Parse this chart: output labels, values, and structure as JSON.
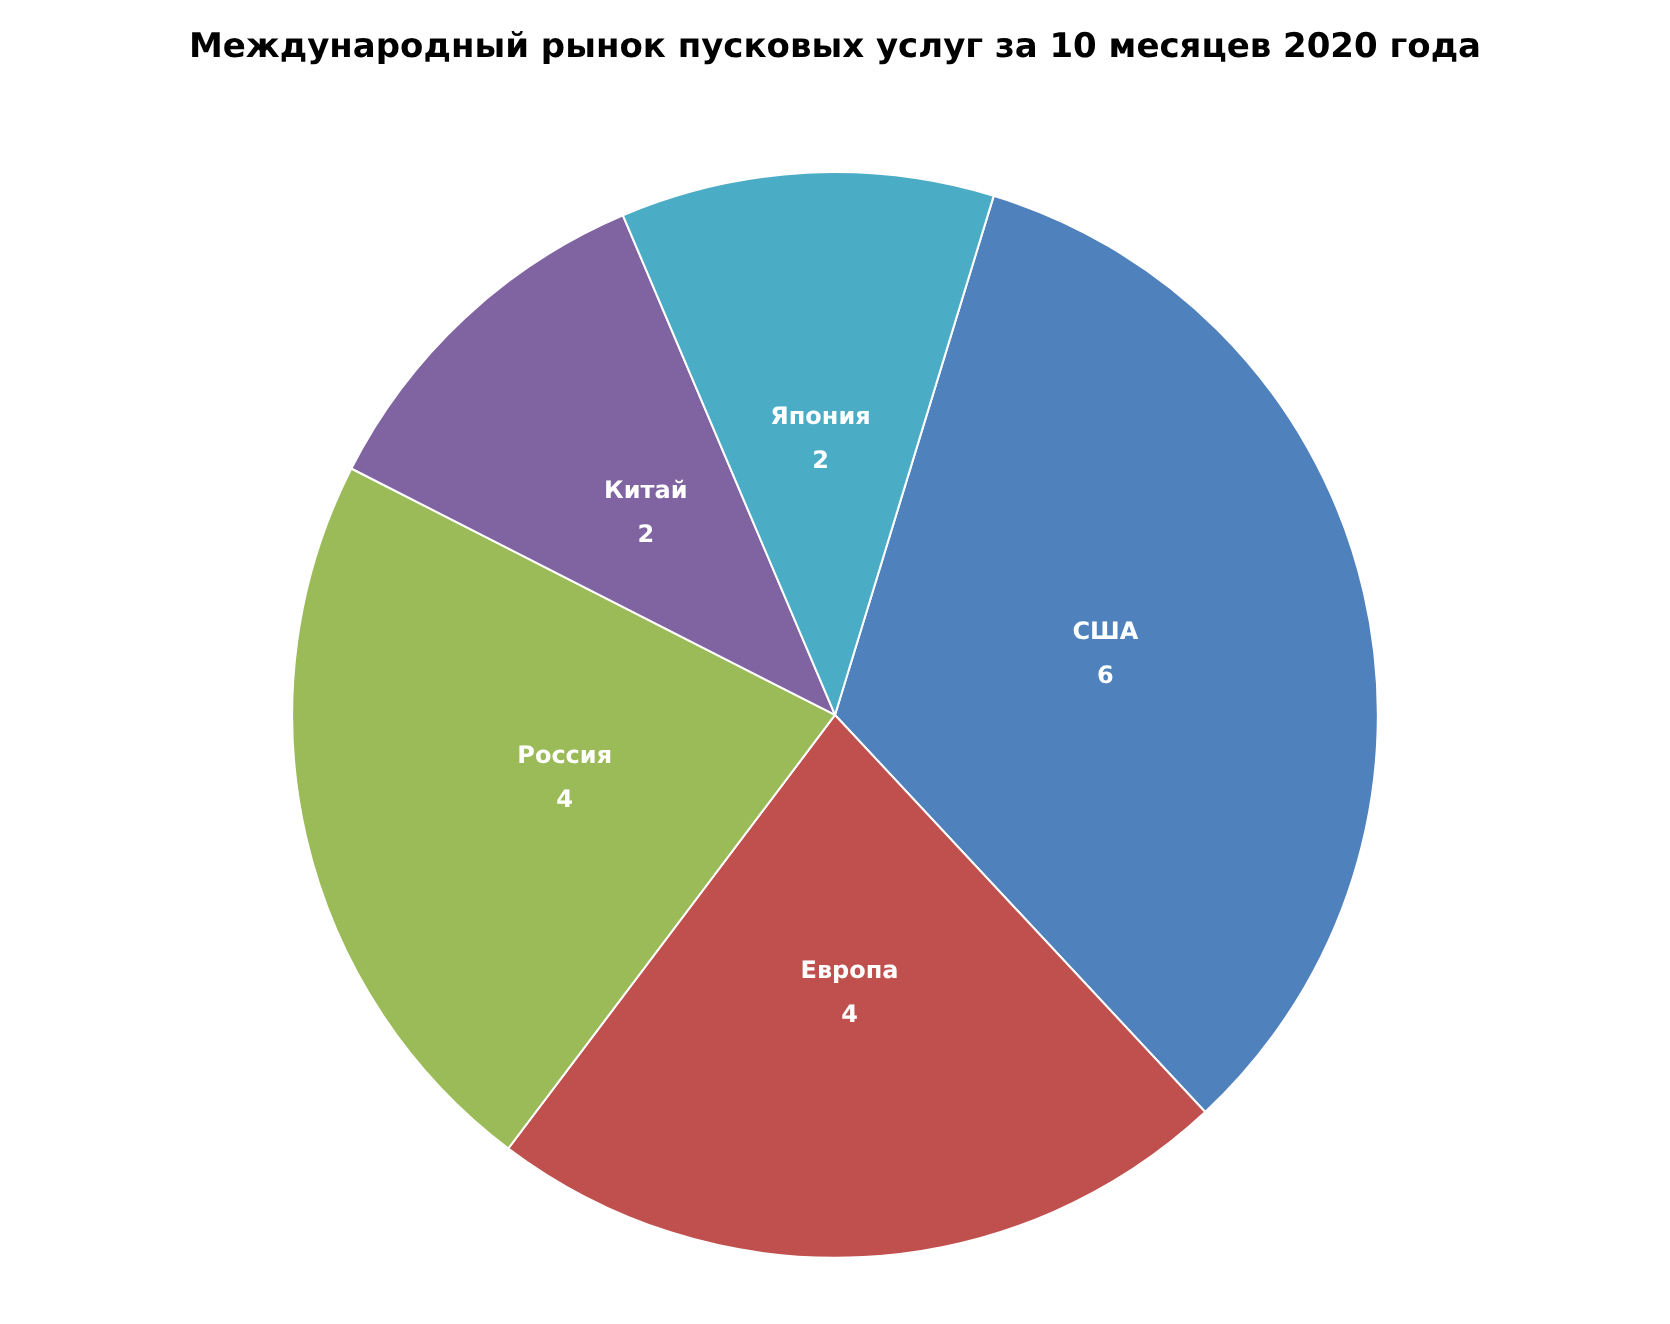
{
  "chart_data": {
    "type": "pie",
    "title": "Международный рынок пусковых услуг за 10 месяцев 2020 года",
    "categories": [
      "США",
      "Европа",
      "Россия",
      "Китай",
      "Япония"
    ],
    "values": [
      6,
      4,
      4,
      2,
      2
    ],
    "colors": [
      "#4f81bd",
      "#c0504d",
      "#9bbb59",
      "#8064a2",
      "#4bacc6"
    ],
    "data_labels": true,
    "legend": false
  }
}
